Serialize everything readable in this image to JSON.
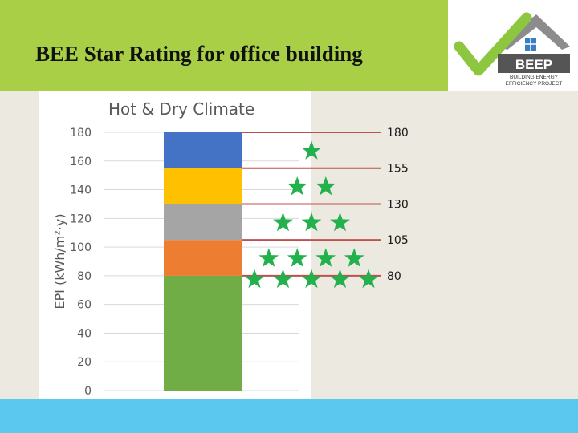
{
  "slide": {
    "title": "BEE Star Rating for office building"
  },
  "logo": {
    "name": "BEEP",
    "line1": "BUILDING ENERGY",
    "line2": "EFFICIENCY PROJECT",
    "check_color": "#8dc63f",
    "roof_color": "#8c8c8c"
  },
  "chart_data": {
    "type": "bar",
    "title": "Hot & Dry Climate",
    "ylabel": "EPI (kWh/m²·y)",
    "ylim": [
      0,
      180
    ],
    "yticks": [
      "0",
      "20",
      "40",
      "60",
      "80",
      "100",
      "120",
      "140",
      "160",
      "180"
    ],
    "grid": true,
    "segments": [
      {
        "from": 0,
        "to": 80,
        "color": "#70ad47"
      },
      {
        "from": 80,
        "to": 105,
        "color": "#ed7d31"
      },
      {
        "from": 105,
        "to": 130,
        "color": "#a5a5a5"
      },
      {
        "from": 130,
        "to": 155,
        "color": "#ffc000"
      },
      {
        "from": 155,
        "to": 180,
        "color": "#4472c4"
      }
    ],
    "thresholds": [
      {
        "value": 180,
        "label": "180"
      },
      {
        "value": 155,
        "label": "155"
      },
      {
        "value": 130,
        "label": "130"
      },
      {
        "value": 105,
        "label": "105"
      },
      {
        "value": 80,
        "label": "80"
      }
    ],
    "threshold_color": "#c0504d",
    "star_color": "#22b14c",
    "star_ratings": [
      {
        "stars": 1,
        "range": [
          155,
          180
        ]
      },
      {
        "stars": 2,
        "range": [
          130,
          155
        ]
      },
      {
        "stars": 3,
        "range": [
          105,
          130
        ]
      },
      {
        "stars": 4,
        "range": [
          80,
          105
        ]
      },
      {
        "stars": 5,
        "range": [
          0,
          80
        ]
      }
    ]
  }
}
